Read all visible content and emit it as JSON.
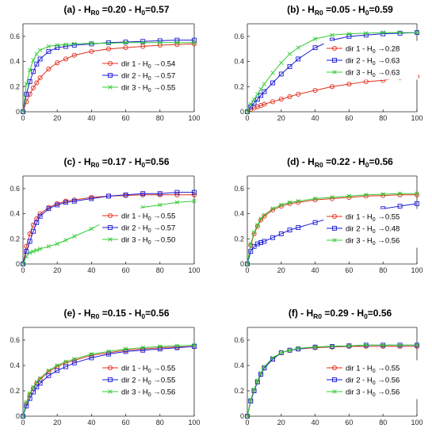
{
  "figure": {
    "background": "#ffffff"
  },
  "chart_data": [
    {
      "type": "line",
      "title": {
        "prefix": "(a) - H",
        "sub1": "R0",
        "mid": " =0.20 - H",
        "sub2": "0",
        "suffix": "=0.57"
      },
      "xlim": [
        0,
        100
      ],
      "ylim": [
        0,
        0.7
      ],
      "xticks": [
        0,
        20,
        40,
        60,
        80,
        100
      ],
      "yticks": [
        0,
        0.2,
        0.4,
        0.6
      ],
      "legend_position": "right-middle",
      "x": [
        0,
        2,
        4,
        6,
        8,
        10,
        15,
        20,
        25,
        30,
        40,
        50,
        60,
        70,
        80,
        90,
        100
      ],
      "series": [
        {
          "name": "dir 1 - H0 →0.54",
          "label": {
            "pre": "dir 1 - H",
            "sub": "0",
            "post": " →0.54"
          },
          "color": "#e0301e",
          "marker": "circle",
          "values": [
            0.0,
            0.08,
            0.14,
            0.19,
            0.23,
            0.27,
            0.34,
            0.39,
            0.42,
            0.45,
            0.48,
            0.5,
            0.51,
            0.52,
            0.53,
            0.535,
            0.54
          ]
        },
        {
          "name": "dir 2 - H0 →0.57",
          "label": {
            "pre": "dir 2 - H",
            "sub": "0",
            "post": " →0.57"
          },
          "color": "#1a1ad6",
          "marker": "square",
          "values": [
            0.0,
            0.14,
            0.24,
            0.32,
            0.38,
            0.42,
            0.48,
            0.51,
            0.52,
            0.53,
            0.54,
            0.55,
            0.555,
            0.56,
            0.565,
            0.57,
            0.57
          ]
        },
        {
          "name": "dir 3 - H0 →0.55",
          "label": {
            "pre": "dir 3 - H",
            "sub": "0",
            "post": " →0.55"
          },
          "color": "#33cc33",
          "marker": "x",
          "values": [
            0.0,
            0.22,
            0.33,
            0.41,
            0.46,
            0.49,
            0.52,
            0.53,
            0.535,
            0.54,
            0.545,
            0.545,
            0.55,
            0.55,
            0.55,
            0.55,
            0.55
          ]
        }
      ]
    },
    {
      "type": "line",
      "title": {
        "prefix": "(b) - H",
        "sub1": "R0",
        "mid": " =0.05 - H",
        "sub2": "0",
        "suffix": "=0.59"
      },
      "xlim": [
        0,
        100
      ],
      "ylim": [
        0,
        0.7
      ],
      "xticks": [
        0,
        20,
        40,
        60,
        80,
        100
      ],
      "yticks": [
        0,
        0.2,
        0.4,
        0.6
      ],
      "legend_position": "top-right",
      "x": [
        0,
        2,
        4,
        6,
        8,
        10,
        15,
        20,
        25,
        30,
        40,
        50,
        60,
        70,
        80,
        90,
        100
      ],
      "series": [
        {
          "name": "dir 1 - H0 →0.28",
          "label": {
            "pre": "dir 1 - H",
            "sub": "0",
            "post": " →0.28"
          },
          "color": "#e0301e",
          "marker": "circle",
          "values": [
            0.0,
            0.02,
            0.03,
            0.04,
            0.05,
            0.06,
            0.08,
            0.1,
            0.12,
            0.14,
            0.17,
            0.2,
            0.22,
            0.24,
            0.25,
            0.27,
            0.28
          ]
        },
        {
          "name": "dir 2 - H0 →0.63",
          "label": {
            "pre": "dir 2 - H",
            "sub": "0",
            "post": " →0.63"
          },
          "color": "#1a1ad6",
          "marker": "square",
          "values": [
            0.0,
            0.04,
            0.07,
            0.1,
            0.13,
            0.16,
            0.23,
            0.3,
            0.36,
            0.42,
            0.51,
            0.57,
            0.6,
            0.61,
            0.62,
            0.625,
            0.63
          ]
        },
        {
          "name": "dir 3 - H0 →0.63",
          "label": {
            "pre": "dir 3 - H",
            "sub": "0",
            "post": " →0.63"
          },
          "color": "#33cc33",
          "marker": "x",
          "values": [
            0.0,
            0.06,
            0.1,
            0.14,
            0.18,
            0.22,
            0.31,
            0.39,
            0.46,
            0.51,
            0.58,
            0.61,
            0.62,
            0.625,
            0.63,
            0.63,
            0.63
          ]
        }
      ]
    },
    {
      "type": "line",
      "title": {
        "prefix": "(c) - H",
        "sub1": "R0",
        "mid": " =0.17 - H",
        "sub2": "0",
        "suffix": "=0.56"
      },
      "xlim": [
        0,
        100
      ],
      "ylim": [
        0,
        0.7
      ],
      "xticks": [
        0,
        20,
        40,
        60,
        80,
        100
      ],
      "yticks": [
        0,
        0.2,
        0.4,
        0.6
      ],
      "legend_position": "right-middle",
      "x": [
        0,
        2,
        4,
        6,
        8,
        10,
        15,
        20,
        25,
        30,
        40,
        50,
        60,
        70,
        80,
        90,
        100
      ],
      "series": [
        {
          "name": "dir 1 - H0 →0.55",
          "label": {
            "pre": "dir 1 - H",
            "sub": "0",
            "post": " →0.55"
          },
          "color": "#e0301e",
          "marker": "circle",
          "values": [
            0.0,
            0.14,
            0.24,
            0.31,
            0.36,
            0.4,
            0.45,
            0.48,
            0.5,
            0.51,
            0.53,
            0.54,
            0.545,
            0.55,
            0.55,
            0.55,
            0.55
          ]
        },
        {
          "name": "dir 2 - H0 →0.57",
          "label": {
            "pre": "dir 2 - H",
            "sub": "0",
            "post": " →0.57"
          },
          "color": "#1a1ad6",
          "marker": "square",
          "values": [
            0.0,
            0.1,
            0.18,
            0.26,
            0.33,
            0.38,
            0.44,
            0.47,
            0.49,
            0.5,
            0.52,
            0.54,
            0.55,
            0.56,
            0.56,
            0.57,
            0.57
          ]
        },
        {
          "name": "dir 3 - H0 →0.50",
          "label": {
            "pre": "dir 3 - H",
            "sub": "0",
            "post": " →0.50"
          },
          "color": "#33cc33",
          "marker": "x",
          "values": [
            0.0,
            0.06,
            0.09,
            0.1,
            0.11,
            0.12,
            0.14,
            0.16,
            0.19,
            0.22,
            0.28,
            0.35,
            0.41,
            0.45,
            0.47,
            0.49,
            0.5
          ]
        }
      ]
    },
    {
      "type": "line",
      "title": {
        "prefix": "(d) - H",
        "sub1": "R0",
        "mid": " =0.22 - H",
        "sub2": "0",
        "suffix": "=0.56"
      },
      "xlim": [
        0,
        100
      ],
      "ylim": [
        0,
        0.7
      ],
      "xticks": [
        0,
        20,
        40,
        60,
        80,
        100
      ],
      "yticks": [
        0,
        0.2,
        0.4,
        0.6
      ],
      "legend_position": "bottom-right",
      "x": [
        0,
        2,
        4,
        6,
        8,
        10,
        15,
        20,
        25,
        30,
        40,
        50,
        60,
        70,
        80,
        90,
        100
      ],
      "series": [
        {
          "name": "dir 1 - H0 →0.55",
          "label": {
            "pre": "dir 1 - H",
            "sub": "0",
            "post": " →0.55"
          },
          "color": "#e0301e",
          "marker": "circle",
          "values": [
            0.0,
            0.15,
            0.24,
            0.3,
            0.35,
            0.38,
            0.43,
            0.46,
            0.48,
            0.49,
            0.51,
            0.52,
            0.53,
            0.54,
            0.545,
            0.55,
            0.55
          ]
        },
        {
          "name": "dir 2 - H0 →0.48",
          "label": {
            "pre": "dir 2 - H",
            "sub": "0",
            "post": " →0.48"
          },
          "color": "#1a1ad6",
          "marker": "square",
          "values": [
            0.0,
            0.1,
            0.14,
            0.16,
            0.17,
            0.18,
            0.21,
            0.24,
            0.27,
            0.29,
            0.33,
            0.37,
            0.4,
            0.42,
            0.44,
            0.46,
            0.48
          ]
        },
        {
          "name": "dir 3 - H0 →0.56",
          "label": {
            "pre": "dir 3 - H",
            "sub": "0",
            "post": " →0.56"
          },
          "color": "#33cc33",
          "marker": "x",
          "values": [
            0.0,
            0.16,
            0.25,
            0.31,
            0.36,
            0.39,
            0.44,
            0.47,
            0.49,
            0.5,
            0.52,
            0.53,
            0.54,
            0.55,
            0.555,
            0.56,
            0.56
          ]
        }
      ]
    },
    {
      "type": "line",
      "title": {
        "prefix": "(e) - H",
        "sub1": "R0",
        "mid": " =0.15 - H",
        "sub2": "0",
        "suffix": "=0.56"
      },
      "xlim": [
        0,
        100
      ],
      "ylim": [
        0,
        0.7
      ],
      "xticks": [
        0,
        20,
        40,
        60,
        80,
        100
      ],
      "yticks": [
        0,
        0.2,
        0.4,
        0.6
      ],
      "legend_position": "bottom-right",
      "x": [
        0,
        2,
        4,
        6,
        8,
        10,
        15,
        20,
        25,
        30,
        40,
        50,
        60,
        70,
        80,
        90,
        100
      ],
      "series": [
        {
          "name": "dir 1 - H0 →0.55",
          "label": {
            "pre": "dir 1 - H",
            "sub": "0",
            "post": " →0.55"
          },
          "color": "#e0301e",
          "marker": "circle",
          "values": [
            0.0,
            0.1,
            0.17,
            0.22,
            0.26,
            0.29,
            0.35,
            0.39,
            0.42,
            0.44,
            0.48,
            0.5,
            0.52,
            0.53,
            0.54,
            0.545,
            0.55
          ]
        },
        {
          "name": "dir 2 - H0 →0.55",
          "label": {
            "pre": "dir 2 - H",
            "sub": "0",
            "post": " →0.55"
          },
          "color": "#1a1ad6",
          "marker": "square",
          "values": [
            0.0,
            0.08,
            0.14,
            0.19,
            0.23,
            0.26,
            0.32,
            0.36,
            0.39,
            0.42,
            0.46,
            0.49,
            0.51,
            0.52,
            0.53,
            0.54,
            0.55
          ]
        },
        {
          "name": "dir 3 - H0 →0.56",
          "label": {
            "pre": "dir 3 - H",
            "sub": "0",
            "post": " →0.56"
          },
          "color": "#33cc33",
          "marker": "x",
          "values": [
            0.0,
            0.11,
            0.18,
            0.23,
            0.27,
            0.3,
            0.36,
            0.4,
            0.43,
            0.45,
            0.49,
            0.51,
            0.53,
            0.54,
            0.55,
            0.555,
            0.56
          ]
        }
      ]
    },
    {
      "type": "line",
      "title": {
        "prefix": "(f) - H",
        "sub1": "R0",
        "mid": " =0.29 - H",
        "sub2": "0",
        "suffix": "=0.56"
      },
      "xlim": [
        0,
        100
      ],
      "ylim": [
        0,
        0.7
      ],
      "xticks": [
        0,
        20,
        40,
        60,
        80,
        100
      ],
      "yticks": [
        0,
        0.2,
        0.4,
        0.6
      ],
      "legend_position": "bottom-right",
      "x": [
        0,
        2,
        4,
        6,
        8,
        10,
        15,
        20,
        25,
        30,
        40,
        50,
        60,
        70,
        80,
        90,
        100
      ],
      "series": [
        {
          "name": "dir 1 - H0 →0.55",
          "label": {
            "pre": "dir 1 - H",
            "sub": "0",
            "post": " →0.55"
          },
          "color": "#e0301e",
          "marker": "circle",
          "values": [
            0.0,
            0.12,
            0.2,
            0.27,
            0.33,
            0.38,
            0.45,
            0.5,
            0.52,
            0.53,
            0.54,
            0.545,
            0.55,
            0.55,
            0.55,
            0.55,
            0.55
          ]
        },
        {
          "name": "dir 2 - H0 →0.56",
          "label": {
            "pre": "dir 2 - H",
            "sub": "0",
            "post": " →0.56"
          },
          "color": "#1a1ad6",
          "marker": "square",
          "values": [
            0.0,
            0.12,
            0.2,
            0.27,
            0.33,
            0.38,
            0.45,
            0.5,
            0.52,
            0.53,
            0.545,
            0.55,
            0.555,
            0.56,
            0.56,
            0.56,
            0.56
          ]
        },
        {
          "name": "dir 3 - H0 →0.56",
          "label": {
            "pre": "dir 3 - H",
            "sub": "0",
            "post": " →0.56"
          },
          "color": "#33cc33",
          "marker": "x",
          "values": [
            0.0,
            0.13,
            0.21,
            0.28,
            0.34,
            0.39,
            0.46,
            0.5,
            0.52,
            0.535,
            0.545,
            0.55,
            0.555,
            0.56,
            0.56,
            0.56,
            0.56
          ]
        }
      ]
    }
  ]
}
